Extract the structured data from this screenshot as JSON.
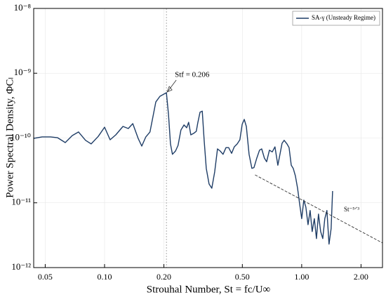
{
  "chart_data": {
    "type": "line",
    "xlabel": "Strouhal Number, St = fc/U∞",
    "ylabel": "Power Spectral Density, ΦCₗ",
    "xscale": "log",
    "yscale": "log",
    "xlim": [
      0.0437,
      2.57
    ],
    "ylim": [
      1e-12,
      1e-08
    ],
    "xticks": [
      {
        "value": 0.05,
        "label": "0.05"
      },
      {
        "value": 0.1,
        "label": "0.10"
      },
      {
        "value": 0.2,
        "label": "0.20"
      },
      {
        "value": 0.5,
        "label": "0.50"
      },
      {
        "value": 1,
        "label": "1.00"
      },
      {
        "value": 2,
        "label": "2.00"
      }
    ],
    "yticks": [
      {
        "value": 1e-12,
        "label": "10⁻¹²"
      },
      {
        "value": 1e-11,
        "label": "10⁻¹¹"
      },
      {
        "value": 1e-10,
        "label": "10⁻¹⁰"
      },
      {
        "value": 1e-09,
        "label": "10⁻⁹"
      },
      {
        "value": 1e-08,
        "label": "10⁻⁸"
      }
    ],
    "grid": true,
    "legend": "upper right",
    "series": [
      {
        "name": "SA-γ (Unsteady Regime)",
        "color": "#1f3d66",
        "x": [
          0.0438,
          0.0482,
          0.0532,
          0.0578,
          0.0632,
          0.0686,
          0.0738,
          0.0801,
          0.0855,
          0.0929,
          0.1,
          0.1067,
          0.114,
          0.124,
          0.132,
          0.139,
          0.148,
          0.1545,
          0.162,
          0.17,
          0.182,
          0.191,
          0.206,
          0.211,
          0.216,
          0.221,
          0.229,
          0.236,
          0.244,
          0.253,
          0.261,
          0.267,
          0.274,
          0.283,
          0.292,
          0.297,
          0.305,
          0.313,
          0.32,
          0.328,
          0.339,
          0.35,
          0.362,
          0.374,
          0.386,
          0.399,
          0.413,
          0.426,
          0.441,
          0.455,
          0.471,
          0.486,
          0.499,
          0.511,
          0.524,
          0.541,
          0.559,
          0.573,
          0.592,
          0.611,
          0.627,
          0.647,
          0.664,
          0.686,
          0.709,
          0.732,
          0.757,
          0.776,
          0.795,
          0.815,
          0.842,
          0.863,
          0.885,
          0.906,
          0.929,
          0.953,
          0.976,
          1.0,
          1.025,
          1.05,
          1.077,
          1.104,
          1.13,
          1.159,
          1.188,
          1.217,
          1.248,
          1.279,
          1.31,
          1.343,
          1.376,
          1.41,
          1.435
        ],
        "values": [
          9.9e-11,
          1.04e-10,
          1.04e-10,
          1.01e-10,
          8.5e-11,
          1.09e-10,
          1.24e-10,
          9.2e-11,
          8.1e-11,
          1.06e-10,
          1.47e-10,
          9.4e-11,
          1.12e-10,
          1.51e-10,
          1.4e-10,
          1.67e-10,
          9.9e-11,
          7.5e-11,
          1.04e-10,
          1.24e-10,
          3.6e-10,
          4.4e-10,
          5e-10,
          2.3e-10,
          8.1e-11,
          5.6e-11,
          6.3e-11,
          7.7e-11,
          1.33e-10,
          1.59e-10,
          1.44e-10,
          1.75e-10,
          1.12e-10,
          1.18e-10,
          1.27e-10,
          1.71e-10,
          2.5e-10,
          2.6e-10,
          9.2e-11,
          3.4e-11,
          1.95e-11,
          1.68e-11,
          3e-11,
          6.8e-11,
          6.3e-11,
          5.6e-11,
          7.1e-11,
          7.1e-11,
          5.8e-11,
          7.3e-11,
          8.1e-11,
          9.4e-11,
          1.63e-10,
          1.94e-10,
          1.51e-10,
          5.6e-11,
          3.4e-11,
          3.5e-11,
          4.9e-11,
          6.5e-11,
          6.8e-11,
          4.9e-11,
          4.3e-11,
          6.5e-11,
          6.1e-11,
          7.3e-11,
          3.8e-11,
          5.6e-11,
          8.3e-11,
          9.2e-11,
          8.1e-11,
          7.1e-11,
          3.8e-11,
          3.4e-11,
          2.6e-11,
          1.68e-11,
          9.7e-12,
          5.7e-12,
          1.1e-11,
          8.6e-12,
          4.6e-12,
          7.6e-12,
          3.6e-12,
          5.7e-12,
          2.8e-12,
          6.7e-12,
          3.6e-12,
          2.8e-12,
          5.7e-12,
          7.6e-12,
          2.3e-12,
          4e-12,
          1.52e-11
        ]
      }
    ],
    "annotation": {
      "text": "Stf = 0.206",
      "x": 0.206,
      "y": 5e-10
    },
    "reference_line": {
      "label": "St⁻⁵ᐟ³",
      "x": [
        0.58,
        2.57
      ],
      "values": [
        2.7e-11,
        2.4e-12
      ]
    }
  }
}
